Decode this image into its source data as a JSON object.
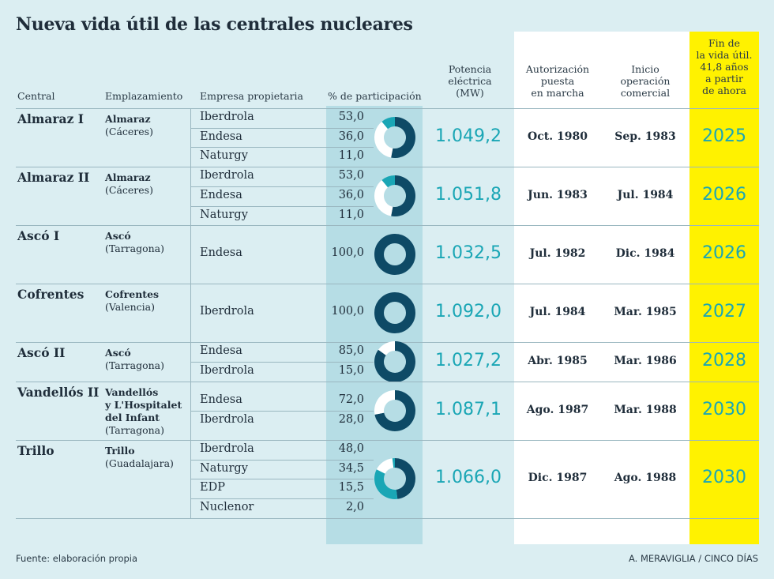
{
  "title": "Nueva vida útil de las centrales nucleares",
  "headers": {
    "central": "Central",
    "emplazamiento": "Emplazamiento",
    "empresa": "Empresa propietaria",
    "participacion": "% de participación",
    "potencia": [
      "Potencia",
      "eléctrica",
      "(MW)"
    ],
    "autorizacion": [
      "Autorización",
      "puesta",
      "en marcha"
    ],
    "inicio": [
      "Inicio",
      "operación",
      "comercial"
    ],
    "fin": [
      "Fin de",
      "la vida útil.",
      "41,8 años",
      "a partir",
      "de ahora"
    ]
  },
  "colors": {
    "dark": "#0e4a66",
    "teal": "#1aa6b5",
    "light": "#ffffff",
    "accent_yellow": "#fff200"
  },
  "plants": [
    {
      "central": "Almaraz I",
      "loc_bold": [
        "Almaraz"
      ],
      "province": "(Cáceres)",
      "owners": [
        {
          "name": "Iberdrola",
          "pct": "53,0"
        },
        {
          "name": "Endesa",
          "pct": "36,0"
        },
        {
          "name": "Naturgy",
          "pct": "11,0"
        }
      ],
      "shares": [
        53.0,
        36.0,
        11.0
      ],
      "potencia": "1.049,2",
      "autorizacion": "Oct. 1980",
      "inicio": "Sep. 1983",
      "fin": "2025"
    },
    {
      "central": "Almaraz II",
      "loc_bold": [
        "Almaraz"
      ],
      "province": "(Cáceres)",
      "owners": [
        {
          "name": "Iberdrola",
          "pct": "53,0"
        },
        {
          "name": "Endesa",
          "pct": "36,0"
        },
        {
          "name": "Naturgy",
          "pct": "11,0"
        }
      ],
      "shares": [
        53.0,
        36.0,
        11.0
      ],
      "potencia": "1.051,8",
      "autorizacion": "Jun. 1983",
      "inicio": "Jul. 1984",
      "fin": "2026"
    },
    {
      "central": "Ascó I",
      "loc_bold": [
        "Ascó"
      ],
      "province": "(Tarragona)",
      "owners": [
        {
          "name": "Endesa",
          "pct": "100,0"
        }
      ],
      "shares": [
        100.0
      ],
      "potencia": "1.032,5",
      "autorizacion": "Jul. 1982",
      "inicio": "Dic. 1984",
      "fin": "2026"
    },
    {
      "central": "Cofrentes",
      "loc_bold": [
        "Cofrentes"
      ],
      "province": "(Valencia)",
      "owners": [
        {
          "name": "Iberdrola",
          "pct": "100,0"
        }
      ],
      "shares": [
        100.0
      ],
      "potencia": "1.092,0",
      "autorizacion": "Jul. 1984",
      "inicio": "Mar. 1985",
      "fin": "2027"
    },
    {
      "central": "Ascó II",
      "loc_bold": [
        "Ascó"
      ],
      "province": "(Tarragona)",
      "owners": [
        {
          "name": "Endesa",
          "pct": "85,0"
        },
        {
          "name": "Iberdrola",
          "pct": "15,0"
        }
      ],
      "shares": [
        85.0,
        15.0
      ],
      "potencia": "1.027,2",
      "autorizacion": "Abr. 1985",
      "inicio": "Mar. 1986",
      "fin": "2028"
    },
    {
      "central": "Vandellós II",
      "loc_bold": [
        "Vandellós",
        "y L'Hospitalet",
        "del Infant"
      ],
      "province": "(Tarragona)",
      "owners": [
        {
          "name": "Endesa",
          "pct": "72,0"
        },
        {
          "name": "Iberdrola",
          "pct": "28,0"
        }
      ],
      "shares": [
        72.0,
        28.0
      ],
      "potencia": "1.087,1",
      "autorizacion": "Ago. 1987",
      "inicio": "Mar. 1988",
      "fin": "2030"
    },
    {
      "central": "Trillo",
      "loc_bold": [
        "Trillo"
      ],
      "province": "(Guadalajara)",
      "owners": [
        {
          "name": "Iberdrola",
          "pct": "48,0"
        },
        {
          "name": "Naturgy",
          "pct": "34,5"
        },
        {
          "name": "EDP",
          "pct": "15,5"
        },
        {
          "name": "Nuclenor",
          "pct": "2,0"
        }
      ],
      "shares": [
        48.0,
        34.5,
        15.5,
        2.0
      ],
      "potencia": "1.066,0",
      "autorizacion": "Dic. 1987",
      "inicio": "Ago. 1988",
      "fin": "2030"
    }
  ],
  "footer": {
    "source": "Fuente: elaboración propia",
    "credit": "A. MERAVIGLIA / CINCO DÍAS"
  }
}
